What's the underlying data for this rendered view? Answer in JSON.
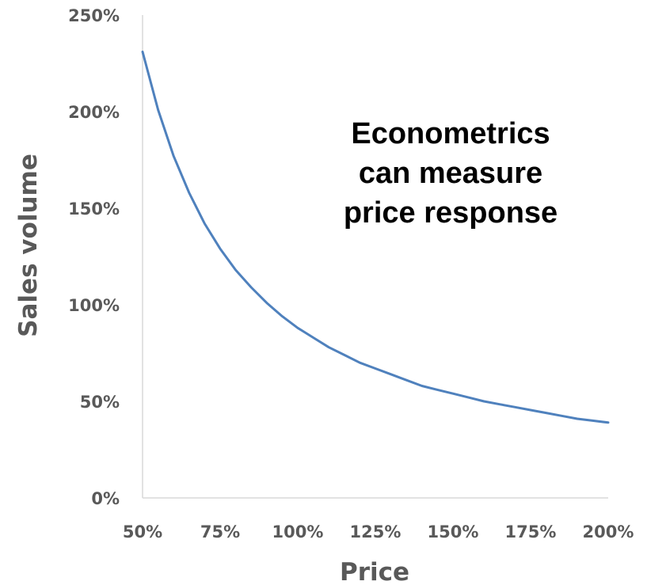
{
  "chart_data": {
    "type": "line",
    "title": "",
    "xlabel": "Price",
    "ylabel": "Sales volume",
    "xlim": [
      0.5,
      2.0
    ],
    "ylim": [
      0,
      2.5
    ],
    "x_ticks": [
      0.5,
      0.75,
      1.0,
      1.25,
      1.5,
      1.75,
      2.0
    ],
    "x_tick_labels": [
      "50%",
      "75%",
      "100%",
      "125%",
      "150%",
      "175%",
      "200%"
    ],
    "y_ticks": [
      0,
      0.5,
      1.0,
      1.5,
      2.0,
      2.5
    ],
    "y_tick_labels": [
      "0%",
      "50%",
      "100%",
      "150%",
      "200%",
      "250%"
    ],
    "grid": false,
    "legend": "none",
    "series": [
      {
        "color": "#4f81bd",
        "x": [
          0.5,
          0.55,
          0.6,
          0.65,
          0.7,
          0.75,
          0.8,
          0.85,
          0.9,
          0.95,
          1.0,
          1.05,
          1.1,
          1.15,
          1.2,
          1.25,
          1.3,
          1.35,
          1.4,
          1.45,
          1.5,
          1.55,
          1.6,
          1.65,
          1.7,
          1.75,
          1.8,
          1.85,
          1.9,
          1.95,
          2.0
        ],
        "y": [
          2.31,
          2.01,
          1.77,
          1.58,
          1.42,
          1.29,
          1.18,
          1.09,
          1.01,
          0.94,
          0.88,
          0.83,
          0.78,
          0.74,
          0.7,
          0.67,
          0.64,
          0.61,
          0.58,
          0.56,
          0.54,
          0.52,
          0.5,
          0.485,
          0.47,
          0.455,
          0.44,
          0.425,
          0.41,
          0.4,
          0.39
        ]
      }
    ],
    "annotations": [
      "Econometrics",
      "can measure",
      "price response"
    ]
  }
}
